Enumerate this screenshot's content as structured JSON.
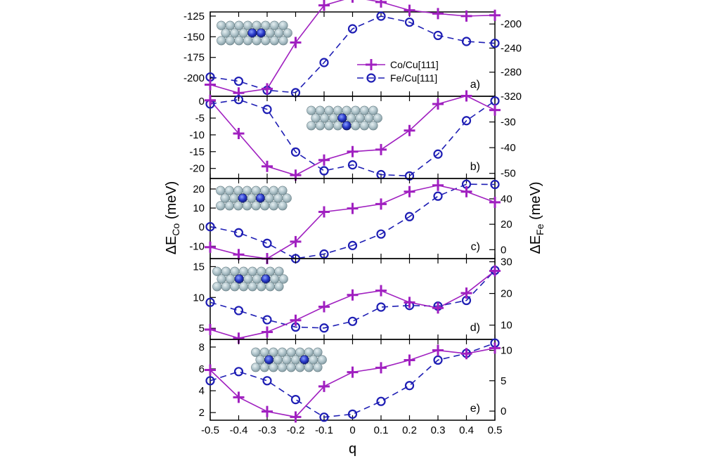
{
  "chart_data": {
    "type": "line",
    "x": [
      -0.5,
      -0.4,
      -0.3,
      -0.2,
      -0.1,
      0,
      0.1,
      0.2,
      0.3,
      0.4,
      0.5
    ],
    "x_ticks": [
      "-0.5",
      "-0.4",
      "-0.3",
      "-0.2",
      "-0.1",
      "0",
      "0.1",
      "0.2",
      "0.3",
      "0.4",
      "0.5"
    ],
    "xlabel": "q",
    "ylabel_left": {
      "main": "ΔE",
      "sub": "Co",
      "unit": " (meV)"
    },
    "ylabel_right": {
      "main": "ΔE",
      "sub": "Fe",
      "unit": " (meV)"
    },
    "legend": [
      {
        "name": "Co/Cu[111]",
        "color": "#a020c0",
        "marker": "plus",
        "line": "solid"
      },
      {
        "name": "Fe/Cu[111]",
        "color": "#1e1eb4",
        "marker": "circle",
        "line": "dashed"
      }
    ],
    "legend_position": "top-right of panel a",
    "panels": [
      {
        "label": "a)",
        "left_ylim": [
          -222,
          -120
        ],
        "left_ticks": [
          -125,
          -150,
          -175,
          -200
        ],
        "right_ylim": [
          -320,
          -180
        ],
        "right_ticks": [
          -200,
          -240,
          -280,
          -320
        ],
        "co": [
          -208,
          -218,
          -213,
          -157,
          -112,
          -102,
          -108,
          -118,
          -122,
          -125,
          -124
        ],
        "fe": [
          -288,
          -295,
          -310,
          -314,
          -264,
          -208,
          -187,
          -197,
          -219,
          -229,
          -232
        ],
        "atoms": [
          "dimer-adjacent",
          2
        ]
      },
      {
        "label": "b)",
        "left_ylim": [
          -23,
          1.5
        ],
        "left_ticks": [
          0,
          -5,
          -10,
          -15,
          -20
        ],
        "right_ylim": [
          -52,
          -20
        ],
        "right_ticks": [
          -30,
          -40,
          -50
        ],
        "co": [
          0.3,
          -9.6,
          -19.4,
          -22.0,
          -17.5,
          -15.0,
          -14.4,
          -8.7,
          -0.8,
          1.6,
          -2.6
        ],
        "fe": [
          -23.0,
          -21.3,
          -25.1,
          -41.7,
          -49.0,
          -46.7,
          -50.5,
          -51.0,
          -42.5,
          -29.5,
          -21.8
        ],
        "atoms": [
          "dimer-diagonal",
          3
        ]
      },
      {
        "label": "c)",
        "left_ylim": [
          -16.5,
          25.5
        ],
        "left_ticks": [
          20,
          10,
          0,
          -10
        ],
        "right_ylim": [
          -7,
          56
        ],
        "right_ticks": [
          40,
          20,
          0
        ],
        "co": [
          -10.5,
          -14.4,
          -16.5,
          -7.6,
          8.0,
          9.8,
          12.1,
          18.6,
          21.9,
          18.6,
          13.0
        ],
        "fe": [
          18.1,
          13.3,
          5.0,
          -7.0,
          -3.4,
          3.3,
          12.3,
          26.0,
          42.1,
          51.5,
          51.3
        ],
        "atoms": [
          "dimer-gap1",
          4
        ]
      },
      {
        "label": "d)",
        "left_ylim": [
          3.2,
          16.3
        ],
        "left_ticks": [
          5,
          10,
          15
        ],
        "right_ylim": [
          5.5,
          31
        ],
        "right_ticks": [
          10,
          20,
          30
        ],
        "co": [
          4.8,
          3.4,
          4.4,
          6.3,
          8.5,
          10.4,
          11.1,
          9.2,
          8.3,
          10.7,
          14.3
        ],
        "fe": [
          17.2,
          14.6,
          11.7,
          9.4,
          9.1,
          11.2,
          15.7,
          16.2,
          16.0,
          17.8,
          27.3
        ],
        "atoms": [
          "dimer-gap2",
          5
        ]
      },
      {
        "label": "e)",
        "left_ylim": [
          1.3,
          8.7
        ],
        "left_ticks": [
          2,
          4,
          6,
          8
        ],
        "right_ylim": [
          -1.5,
          11.8
        ],
        "right_ticks": [
          0,
          5,
          10
        ],
        "co": [
          5.9,
          3.4,
          2.1,
          1.6,
          4.4,
          5.7,
          6.1,
          6.8,
          7.7,
          7.4,
          7.9
        ],
        "fe": [
          5.0,
          6.5,
          5.0,
          1.9,
          -1.0,
          -0.5,
          1.6,
          4.2,
          8.4,
          9.5,
          11.2
        ],
        "atoms": [
          "dimer-gap3",
          6
        ]
      }
    ],
    "grid": false
  }
}
